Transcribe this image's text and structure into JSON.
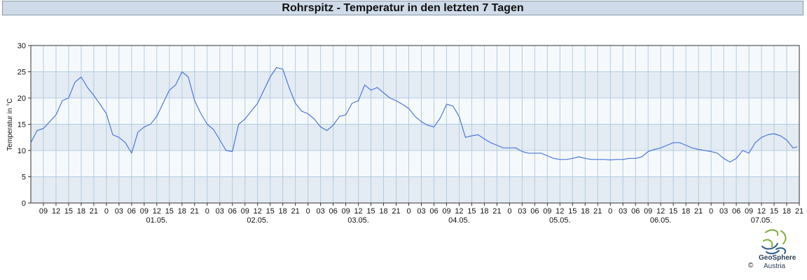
{
  "header": {
    "title": "Rohrspitz - Temperatur in den letzten 7 Tagen"
  },
  "logo": {
    "name": "GeoSphere",
    "country": "Austria",
    "copyright": "©"
  },
  "colors": {
    "line": "#4a78d8",
    "band_dark": "#e4ebf3",
    "band_light": "#f6f9fc",
    "grid": "#b2cce0"
  },
  "chart_data": {
    "type": "line",
    "title": "Rohrspitz - Temperatur in den letzten 7 Tagen",
    "xlabel": "",
    "ylabel": "Temperatur in °C",
    "ylim": [
      0,
      30
    ],
    "yticks": [
      0,
      5,
      10,
      15,
      20,
      25,
      30
    ],
    "xlim": [
      "2024-04-30T06:00",
      "2024-05-07T21:00"
    ],
    "hour_tick_labels": [
      "09",
      "12",
      "15",
      "18",
      "21",
      "0",
      "03",
      "06",
      "09",
      "12",
      "15",
      "18",
      "21",
      "0",
      "03",
      "06",
      "09",
      "12",
      "15",
      "18",
      "21",
      "0",
      "03",
      "06",
      "09",
      "12",
      "15",
      "18",
      "21",
      "0",
      "03",
      "06",
      "09",
      "12",
      "15",
      "18",
      "21",
      "0",
      "03",
      "06",
      "09",
      "12",
      "15",
      "18",
      "21",
      "0",
      "03",
      "06",
      "09",
      "12",
      "15",
      "18",
      "21",
      "0",
      "03",
      "06",
      "09",
      "12",
      "15",
      "18",
      "21"
    ],
    "date_labels": [
      "01.05.",
      "02.05.",
      "03.05.",
      "04.05.",
      "05.05.",
      "06.05.",
      "07.05."
    ],
    "grid": true,
    "legend": "none",
    "series": [
      {
        "x": [
          "2024-04-30T06:00",
          "2024-04-30T07:30",
          "2024-04-30T09:00",
          "2024-04-30T10:30",
          "2024-04-30T12:00",
          "2024-04-30T13:30",
          "2024-04-30T15:00",
          "2024-04-30T16:30",
          "2024-04-30T18:00",
          "2024-04-30T19:30",
          "2024-04-30T21:00",
          "2024-04-30T22:30",
          "2024-05-01T00:00",
          "2024-05-01T01:30",
          "2024-05-01T03:00",
          "2024-05-01T04:30",
          "2024-05-01T06:00",
          "2024-05-01T07:30",
          "2024-05-01T09:00",
          "2024-05-01T10:30",
          "2024-05-01T12:00",
          "2024-05-01T13:30",
          "2024-05-01T15:00",
          "2024-05-01T16:30",
          "2024-05-01T18:00",
          "2024-05-01T19:30",
          "2024-05-01T21:00",
          "2024-05-01T22:30",
          "2024-05-02T00:00",
          "2024-05-02T01:30",
          "2024-05-02T03:00",
          "2024-05-02T04:30",
          "2024-05-02T06:00",
          "2024-05-02T07:30",
          "2024-05-02T09:00",
          "2024-05-02T10:30",
          "2024-05-02T12:00",
          "2024-05-02T13:30",
          "2024-05-02T15:00",
          "2024-05-02T16:30",
          "2024-05-02T18:00",
          "2024-05-02T19:30",
          "2024-05-02T21:00",
          "2024-05-02T22:30",
          "2024-05-03T00:00",
          "2024-05-03T01:30",
          "2024-05-03T03:00",
          "2024-05-03T04:30",
          "2024-05-03T06:00",
          "2024-05-03T07:30",
          "2024-05-03T09:00",
          "2024-05-03T10:30",
          "2024-05-03T12:00",
          "2024-05-03T13:30",
          "2024-05-03T15:00",
          "2024-05-03T16:30",
          "2024-05-03T18:00",
          "2024-05-03T19:30",
          "2024-05-03T21:00",
          "2024-05-03T22:30",
          "2024-05-04T00:00",
          "2024-05-04T01:30",
          "2024-05-04T03:00",
          "2024-05-04T04:30",
          "2024-05-04T06:00",
          "2024-05-04T07:30",
          "2024-05-04T09:00",
          "2024-05-04T10:30",
          "2024-05-04T12:00",
          "2024-05-04T13:30",
          "2024-05-04T15:00",
          "2024-05-04T16:30",
          "2024-05-04T18:00",
          "2024-05-04T19:30",
          "2024-05-04T21:00",
          "2024-05-04T22:30",
          "2024-05-05T00:00",
          "2024-05-05T01:30",
          "2024-05-05T03:00",
          "2024-05-05T04:30",
          "2024-05-05T06:00",
          "2024-05-05T07:30",
          "2024-05-05T09:00",
          "2024-05-05T10:30",
          "2024-05-05T12:00",
          "2024-05-05T13:30",
          "2024-05-05T15:00",
          "2024-05-05T16:30",
          "2024-05-05T18:00",
          "2024-05-05T19:30",
          "2024-05-05T21:00",
          "2024-05-05T22:30",
          "2024-05-06T00:00",
          "2024-05-06T01:30",
          "2024-05-06T03:00",
          "2024-05-06T04:30",
          "2024-05-06T06:00",
          "2024-05-06T07:30",
          "2024-05-06T09:00",
          "2024-05-06T10:30",
          "2024-05-06T12:00",
          "2024-05-06T13:30",
          "2024-05-06T15:00",
          "2024-05-06T16:30",
          "2024-05-06T18:00",
          "2024-05-06T19:30",
          "2024-05-06T21:00",
          "2024-05-06T22:30",
          "2024-05-07T00:00",
          "2024-05-07T01:30",
          "2024-05-07T03:00",
          "2024-05-07T04:30",
          "2024-05-07T06:00",
          "2024-05-07T07:30",
          "2024-05-07T09:00",
          "2024-05-07T10:30",
          "2024-05-07T12:00",
          "2024-05-07T13:30",
          "2024-05-07T15:00",
          "2024-05-07T16:30",
          "2024-05-07T18:00",
          "2024-05-07T19:30",
          "2024-05-07T20:30"
        ],
        "y": [
          11.5,
          13.8,
          14.2,
          15.5,
          16.8,
          19.5,
          20.0,
          23.0,
          24.0,
          22.0,
          20.5,
          18.8,
          17.0,
          13.0,
          12.5,
          11.5,
          9.5,
          13.5,
          14.5,
          15.0,
          16.5,
          19.0,
          21.5,
          22.5,
          25.0,
          24.0,
          19.5,
          17.0,
          15.0,
          14.0,
          12.0,
          10.0,
          9.8,
          15.0,
          16.0,
          17.5,
          19.0,
          21.5,
          24.0,
          25.8,
          25.5,
          22.0,
          19.0,
          17.5,
          17.0,
          16.0,
          14.5,
          13.8,
          14.8,
          16.5,
          16.8,
          19.0,
          19.5,
          22.5,
          21.5,
          22.0,
          21.0,
          20.0,
          19.5,
          18.8,
          18.0,
          16.5,
          15.5,
          14.8,
          14.5,
          16.2,
          18.8,
          18.5,
          16.5,
          12.5,
          12.8,
          13.0,
          12.2,
          11.5,
          11.0,
          10.5,
          10.5,
          10.5,
          9.8,
          9.5,
          9.5,
          9.5,
          9.0,
          8.5,
          8.3,
          8.3,
          8.5,
          8.8,
          8.5,
          8.3,
          8.3,
          8.3,
          8.2,
          8.3,
          8.3,
          8.5,
          8.5,
          8.8,
          9.8,
          10.2,
          10.5,
          11.0,
          11.5,
          11.5,
          11.0,
          10.5,
          10.2,
          10.0,
          9.8,
          9.5,
          8.5,
          7.8,
          8.5,
          10.0,
          9.5,
          11.5,
          12.5,
          13.0,
          13.2,
          12.8,
          12.0,
          10.5,
          10.7
        ]
      }
    ]
  }
}
